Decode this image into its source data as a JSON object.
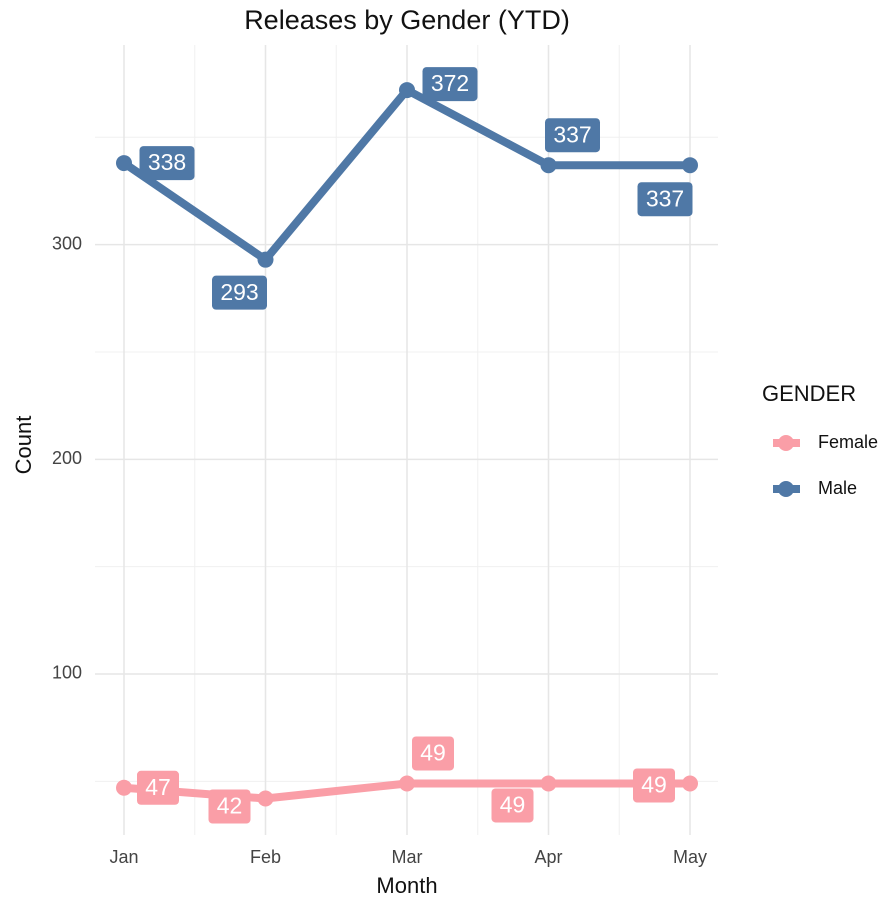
{
  "chart_data": {
    "type": "line",
    "title": "Releases by Gender (YTD)",
    "x_label": "Month",
    "y_label": "Count",
    "legend_title": "GENDER",
    "legend_position": "right",
    "grid": true,
    "categories": [
      "Jan",
      "Feb",
      "Mar",
      "Apr",
      "May"
    ],
    "series": [
      {
        "name": "Female",
        "color": "#fa9ea7",
        "values": [
          47,
          42,
          49,
          49,
          49
        ]
      },
      {
        "name": "Male",
        "color": "#4f78a6",
        "values": [
          338,
          293,
          372,
          337,
          337
        ]
      }
    ],
    "ylim": [
      25,
      393
    ],
    "yticks": [
      100,
      200,
      300
    ]
  }
}
